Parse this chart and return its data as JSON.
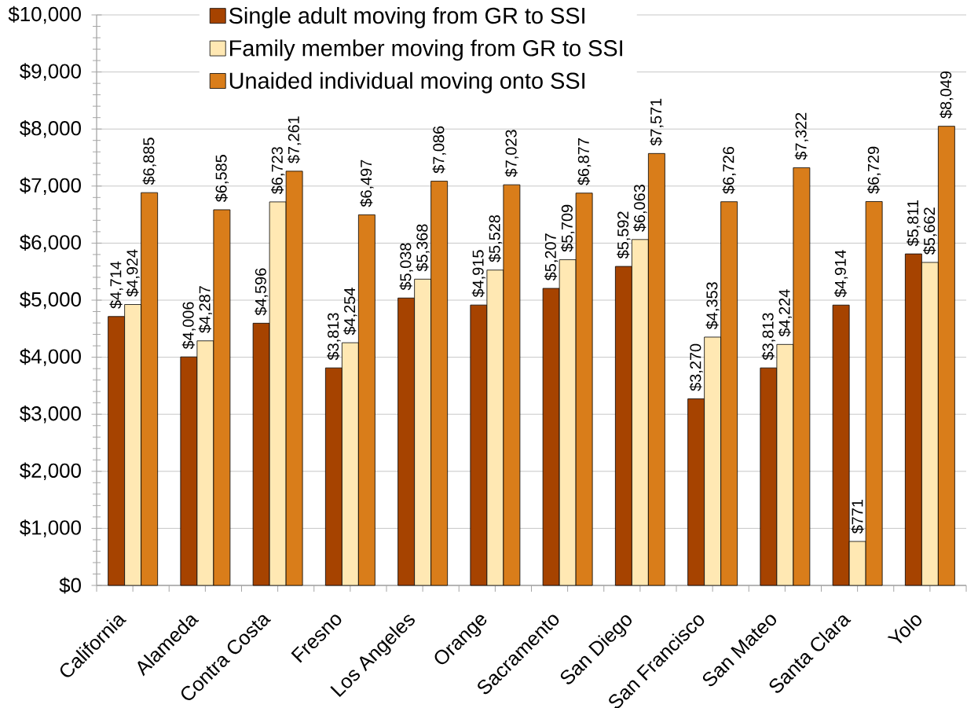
{
  "chart_data": {
    "type": "bar",
    "categories": [
      "California",
      "Alameda",
      "Contra Costa",
      "Fresno",
      "Los Angeles",
      "Orange",
      "Sacramento",
      "San Diego",
      "San Francisco",
      "San Mateo",
      "Santa Clara",
      "Yolo"
    ],
    "series": [
      {
        "name": "Single adult moving from GR to SSI",
        "color": "#a64300",
        "values": [
          4714,
          4006,
          4596,
          3813,
          5038,
          4915,
          5207,
          5592,
          3270,
          3813,
          4914,
          5811
        ],
        "value_labels": [
          "$4,714",
          "$4,006",
          "$4,596",
          "$3,813",
          "$5,038",
          "$4,915",
          "$5,207",
          "$5,592",
          "$3,270",
          "$3,813",
          "$4,914",
          "$5,811"
        ]
      },
      {
        "name": "Family member moving from GR to SSI",
        "color": "#ffe8b3",
        "values": [
          4924,
          4287,
          6723,
          4254,
          5368,
          5528,
          5709,
          6063,
          4353,
          4224,
          771,
          5662
        ],
        "value_labels": [
          "$4,924",
          "$4,287",
          "$6,723",
          "$4,254",
          "$5,368",
          "$5,528",
          "$5,709",
          "$6,063",
          "$4,353",
          "$4,224",
          "$771",
          "$5,662"
        ]
      },
      {
        "name": "Unaided individual moving onto SSI",
        "color": "#d97d1a",
        "values": [
          6885,
          6585,
          7261,
          6497,
          7086,
          7023,
          6877,
          7571,
          6726,
          7322,
          6729,
          8049
        ],
        "value_labels": [
          "$6,885",
          "$6,585",
          "$7,261",
          "$6,497",
          "$7,086",
          "$7,023",
          "$6,877",
          "$7,571",
          "$6,726",
          "$7,322",
          "$6,729",
          "$8,049"
        ]
      }
    ],
    "ylim": [
      0,
      10000
    ],
    "yticks": [
      {
        "value": 0,
        "label": "$0"
      },
      {
        "value": 1000,
        "label": "$1,000"
      },
      {
        "value": 2000,
        "label": "$2,000"
      },
      {
        "value": 3000,
        "label": "$3,000"
      },
      {
        "value": 4000,
        "label": "$4,000"
      },
      {
        "value": 5000,
        "label": "$5,000"
      },
      {
        "value": 6000,
        "label": "$6,000"
      },
      {
        "value": 7000,
        "label": "$7,000"
      },
      {
        "value": 8000,
        "label": "$8,000"
      },
      {
        "value": 9000,
        "label": "$9,000"
      },
      {
        "value": 10000,
        "label": "$10,000"
      }
    ],
    "grid": "y",
    "legend": "top"
  }
}
